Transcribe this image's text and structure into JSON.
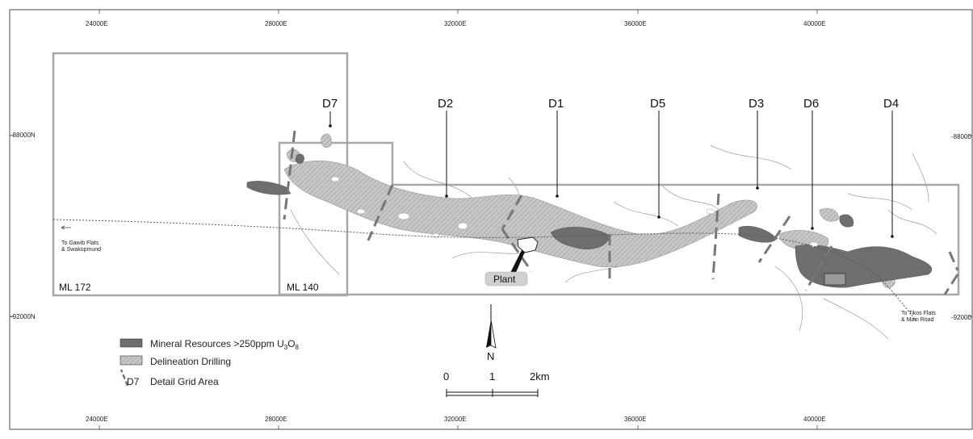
{
  "map": {
    "colors": {
      "mineral": "#6e6e6e",
      "delineation": "#c8c8c8",
      "boundary": "#a8a8a8",
      "detail_dash": "#777777",
      "contour": "#9a9a9a"
    },
    "grid": {
      "eastings": [
        "24000E",
        "28000E",
        "32000E",
        "36000E",
        "40000E"
      ],
      "northings_left": [
        "-88000N",
        "-92000N"
      ],
      "northings_right": [
        "-88000",
        "-92000"
      ]
    },
    "deposits": [
      "D7",
      "D2",
      "D1",
      "D5",
      "D3",
      "D6",
      "D4"
    ],
    "licences": [
      "ML 172",
      "ML 140"
    ],
    "roads": {
      "west_line1": "To Gawib Flats",
      "west_line2": "& Swakopmund",
      "east_line1": "To Tikos Flats",
      "east_line2": "& Main Road"
    },
    "plant_label": "Plant",
    "north_label": "N",
    "scale": {
      "zero": "0",
      "mid": "1",
      "end": "2km"
    },
    "legend": {
      "mineral_main": "Mineral Resources >250ppm U",
      "mineral_sub1": "3",
      "mineral_mid": "O",
      "mineral_sub2": "8",
      "delineation": "Delineation Drilling",
      "detail_code": "D7",
      "detail": "Detail Grid Area"
    }
  }
}
